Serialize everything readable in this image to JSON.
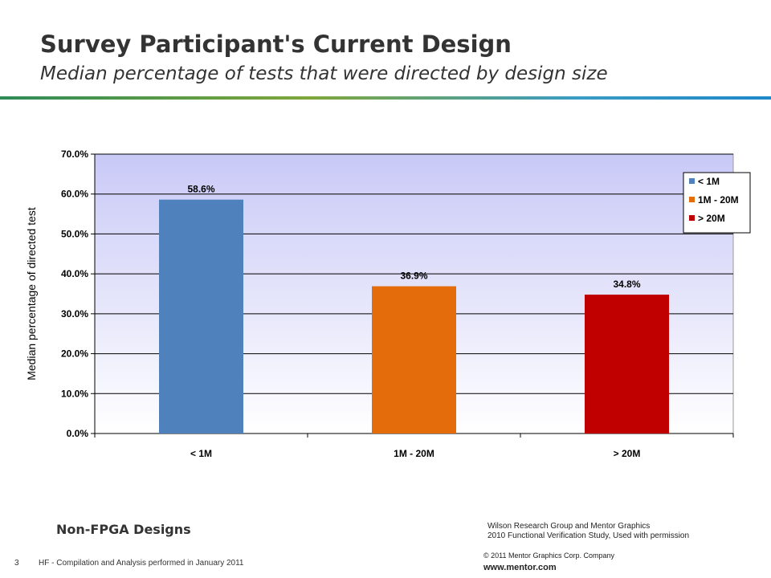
{
  "slide": {
    "title": "Survey Participant's Current Design",
    "subtitle": "Median percentage of tests that were directed by design size",
    "bottom_label": "Non-FPGA Designs",
    "source_line1": "Wilson Research Group and Mentor Graphics",
    "source_line2": "2010 Functional Verification Study,  Used with permission",
    "copyright": "© 2011 Mentor Graphics Corp. Company",
    "website": "www.mentor.com",
    "page_number": "3",
    "footer_note": "HF - Compilation and Analysis performed in January 2011"
  },
  "chart_data": {
    "type": "bar",
    "categories": [
      "< 1M",
      "1M - 20M",
      "> 20M"
    ],
    "values": [
      58.6,
      36.9,
      34.8
    ],
    "data_labels": [
      "58.6%",
      "36.9%",
      "34.8%"
    ],
    "colors": [
      "#4f81bd",
      "#e46c0a",
      "#c00000"
    ],
    "title": "",
    "xlabel": "",
    "ylabel": "Median percentage of directed test",
    "ylim": [
      0,
      70
    ],
    "yticks": [
      0,
      10,
      20,
      30,
      40,
      50,
      60,
      70
    ],
    "ytick_labels": [
      "0.0%",
      "10.0%",
      "20.0%",
      "30.0%",
      "40.0%",
      "50.0%",
      "60.0%",
      "70.0%"
    ],
    "grid": true,
    "legend": {
      "placement": "right",
      "entries": [
        "< 1M",
        "1M - 20M",
        "> 20M"
      ]
    }
  }
}
